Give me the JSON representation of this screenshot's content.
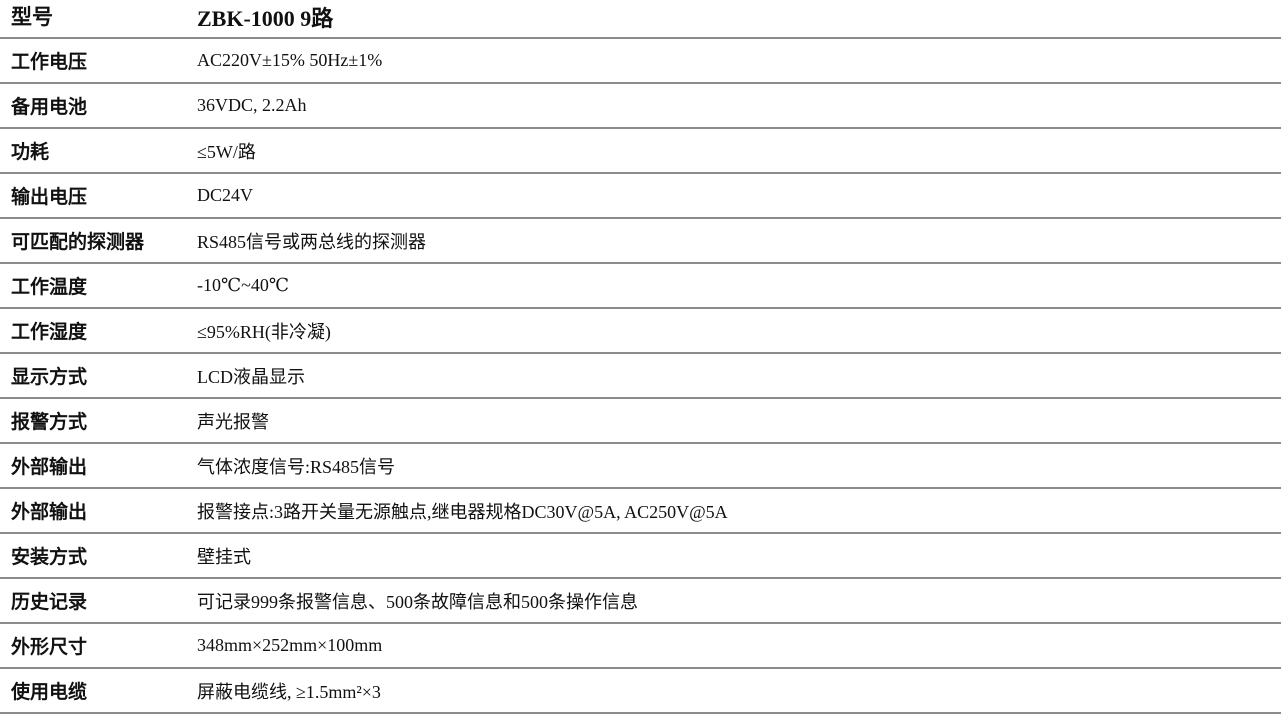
{
  "header": {
    "label": "型号",
    "value": "ZBK-1000 9路"
  },
  "rows": [
    {
      "label": "工作电压",
      "value": "AC220V±15% 50Hz±1%"
    },
    {
      "label": "备用电池",
      "value": "36VDC, 2.2Ah"
    },
    {
      "label": "功耗",
      "value": "≤5W/路"
    },
    {
      "label": "输出电压",
      "value": "DC24V"
    },
    {
      "label": "可匹配的探测器",
      "value": "RS485信号或两总线的探测器"
    },
    {
      "label": "工作温度",
      "value": "-10℃~40℃"
    },
    {
      "label": "工作湿度",
      "value": "≤95%RH(非冷凝)"
    },
    {
      "label": "显示方式",
      "value": "LCD液晶显示"
    },
    {
      "label": "报警方式",
      "value": "声光报警"
    },
    {
      "label": "外部输出",
      "value": "气体浓度信号:RS485信号"
    },
    {
      "label": "外部输出",
      "value": "报警接点:3路开关量无源触点,继电器规格DC30V@5A, AC250V@5A"
    },
    {
      "label": "安装方式",
      "value": "壁挂式"
    },
    {
      "label": "历史记录",
      "value": "可记录999条报警信息、500条故障信息和500条操作信息"
    },
    {
      "label": "外形尺寸",
      "value": "348mm×252mm×100mm"
    },
    {
      "label": "使用电缆",
      "value": "屏蔽电缆线, ≥1.5mm²×3"
    }
  ]
}
